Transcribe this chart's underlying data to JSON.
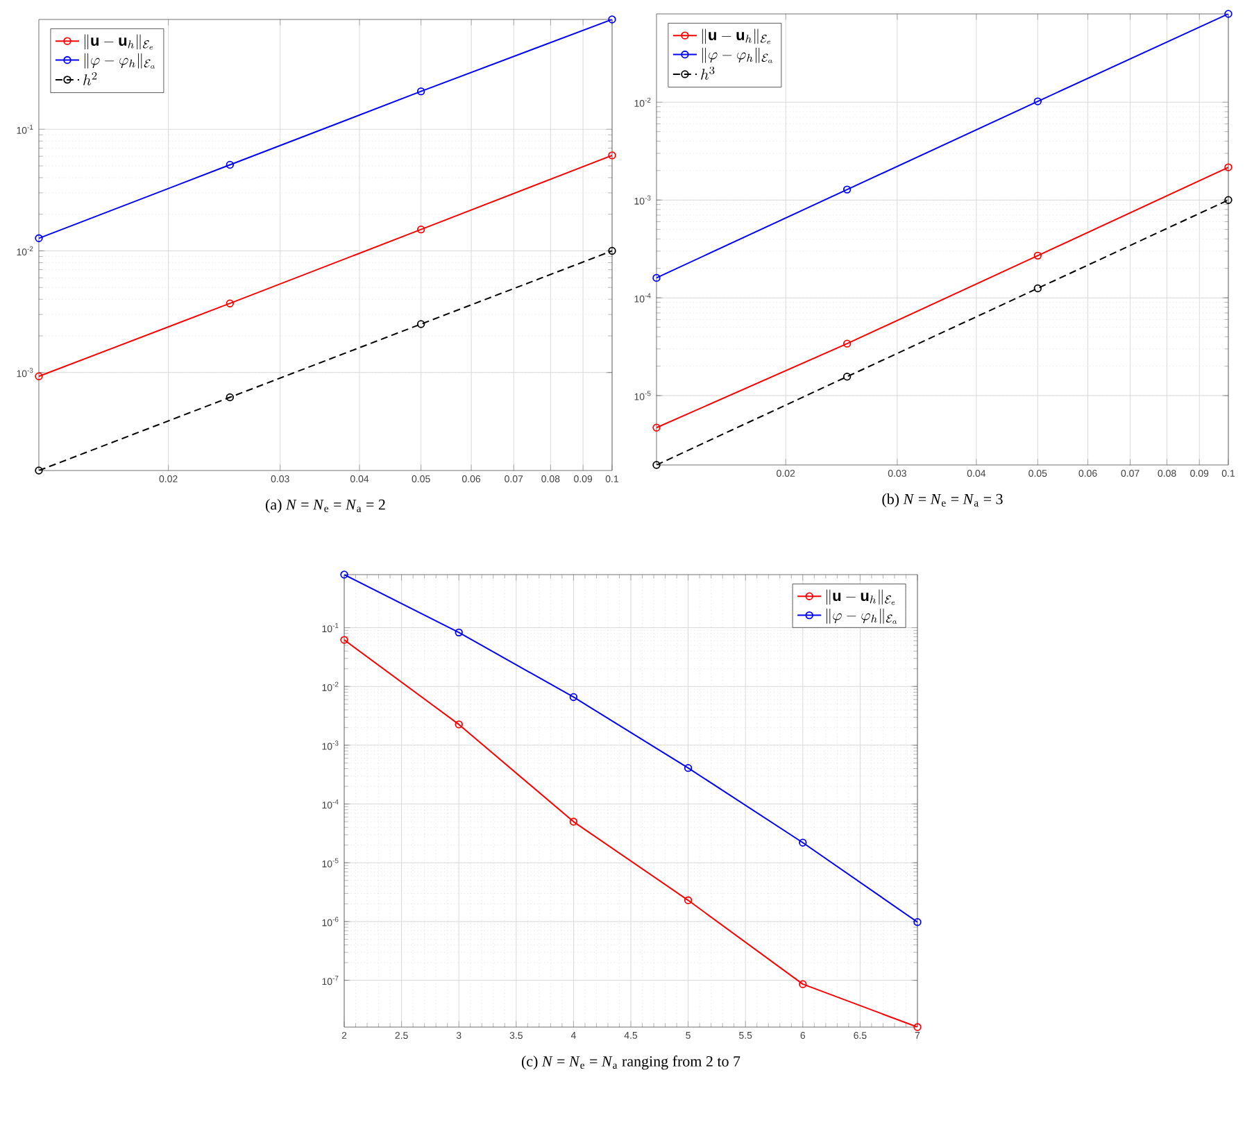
{
  "chart_data": [
    {
      "type": "line",
      "log": "xy",
      "grid": true,
      "marker": "circle",
      "legend": "top left",
      "x": [
        0.0125,
        0.025,
        0.05,
        0.1
      ],
      "xlim": [
        0.0125,
        0.1
      ],
      "ylim": [
        0.00015625,
        0.8
      ],
      "xticks": [
        0.02,
        0.03,
        0.04,
        0.05,
        0.06,
        0.07,
        0.08,
        0.09,
        0.1
      ],
      "yticks": [
        {
          "value": 0.001,
          "label": "10$^{-3}$"
        },
        {
          "value": 0.01,
          "label": "10$^{-2}$"
        },
        {
          "value": 0.1,
          "label": "10$^{-1}$"
        }
      ],
      "series": [
        {
          "name": "\\|\\mathbf{u}-\\mathbf{u}_h\\|_{\\mathcal{E}_e}",
          "color": "#ff0000",
          "values": [
            0.00093,
            0.0037,
            0.015,
            0.061
          ]
        },
        {
          "name": "\\|\\varphi-\\varphi_h\\|_{\\mathcal{E}_a}",
          "color": "#0000ff",
          "values": [
            0.0127,
            0.051,
            0.205,
            0.8
          ]
        },
        {
          "name": "h^2",
          "color": "#000000",
          "line_style": "dashed",
          "values": [
            0.00015625,
            0.000625,
            0.0025,
            0.01
          ]
        }
      ],
      "annotations": [
        "(a) *N* = *N*$_{e}$ = *N*$_{a}$ = 2"
      ]
    },
    {
      "type": "line",
      "log": "xy",
      "grid": true,
      "marker": "circle",
      "legend": "top left",
      "x": [
        0.0125,
        0.025,
        0.05,
        0.1
      ],
      "xlim": [
        0.0125,
        0.1
      ],
      "ylim": [
        1.953e-06,
        0.08
      ],
      "xticks": [
        0.02,
        0.03,
        0.04,
        0.05,
        0.06,
        0.07,
        0.08,
        0.09,
        0.1
      ],
      "yticks": [
        {
          "value": 1e-05,
          "label": "10$^{-5}$"
        },
        {
          "value": 0.0001,
          "label": "10$^{-4}$"
        },
        {
          "value": 0.001,
          "label": "10$^{-3}$"
        },
        {
          "value": 0.01,
          "label": "10$^{-2}$"
        }
      ],
      "series": [
        {
          "name": "\\|\\mathbf{u}-\\mathbf{u}_h\\|_{\\mathcal{E}_e}",
          "color": "#ff0000",
          "values": [
            4.7e-06,
            3.4e-05,
            0.00027,
            0.00216
          ]
        },
        {
          "name": "\\|\\varphi-\\varphi_h\\|_{\\mathcal{E}_a}",
          "color": "#0000ff",
          "values": [
            0.00016,
            0.00128,
            0.0102,
            0.08
          ]
        },
        {
          "name": "h^3",
          "color": "#000000",
          "line_style": "dashed",
          "values": [
            1.953e-06,
            1.5625e-05,
            0.000125,
            0.001
          ]
        }
      ],
      "annotations": [
        "(b) *N* = *N*$_{e}$ = *N*$_{a}$ = 3"
      ]
    },
    {
      "type": "line",
      "log": "y",
      "grid": true,
      "marker": "circle",
      "legend": "top right",
      "x": [
        2,
        3,
        4,
        5,
        6,
        7
      ],
      "xlim": [
        2,
        7
      ],
      "ylim": [
        1.6e-08,
        0.8
      ],
      "xticks": [
        2,
        2.5,
        3,
        3.5,
        4,
        4.5,
        5,
        5.5,
        6,
        6.5,
        7
      ],
      "yticks": [
        {
          "value": 1e-07,
          "label": "10$^{-7}$"
        },
        {
          "value": 1e-06,
          "label": "10$^{-6}$"
        },
        {
          "value": 1e-05,
          "label": "10$^{-5}$"
        },
        {
          "value": 0.0001,
          "label": "10$^{-4}$"
        },
        {
          "value": 0.001,
          "label": "10$^{-3}$"
        },
        {
          "value": 0.01,
          "label": "10$^{-2}$"
        },
        {
          "value": 0.1,
          "label": "10$^{-1}$"
        }
      ],
      "series": [
        {
          "name": "\\|\\mathbf{u}-\\mathbf{u}_h\\|_{\\mathcal{E}_e}",
          "color": "#ff0000",
          "values": [
            0.062,
            0.00226,
            5e-05,
            2.3e-06,
            8.6e-08,
            1.6e-08
          ]
        },
        {
          "name": "\\|\\varphi-\\varphi_h\\|_{\\mathcal{E}_a}",
          "color": "#0000ff",
          "values": [
            0.8,
            0.083,
            0.0066,
            0.00041,
            2.2e-05,
            9.8e-07
          ]
        }
      ],
      "annotations": [
        "(c) *N* = *N*$_{e}$ = *N*$_{a}$ ranging from 2 to 7"
      ]
    }
  ]
}
